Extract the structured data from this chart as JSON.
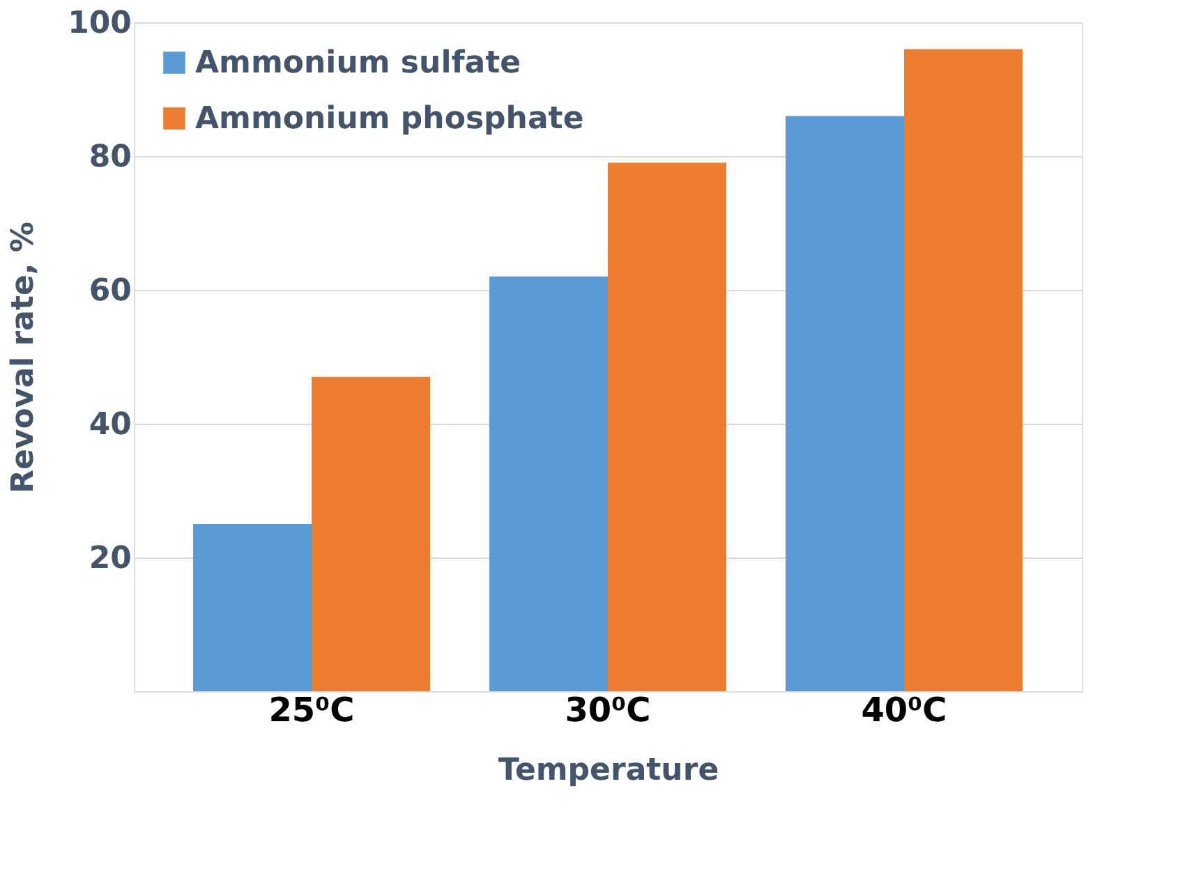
{
  "chart_data": {
    "type": "bar",
    "xlabel": "Temperature",
    "ylabel": "Revoval rate, %",
    "categories": [
      "25⁰C",
      "30⁰C",
      "40⁰C"
    ],
    "series": [
      {
        "name": "Ammonium sulfate",
        "color": "#5b9bd5",
        "values": [
          25,
          62,
          86
        ]
      },
      {
        "name": "Ammonium phosphate",
        "color": "#ed7d31",
        "values": [
          47,
          79,
          96
        ]
      }
    ],
    "ylim": [
      0,
      100
    ],
    "yticks": [
      20,
      40,
      60,
      80,
      100
    ],
    "grid": "y",
    "legend": "top left"
  }
}
